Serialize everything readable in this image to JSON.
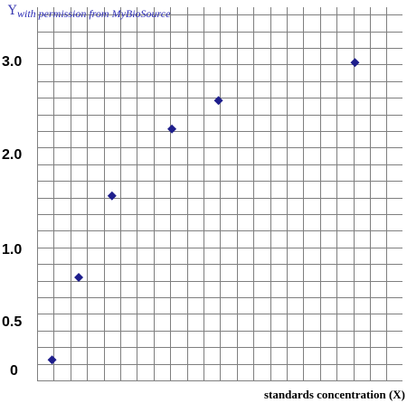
{
  "chart_data": {
    "type": "scatter",
    "title": "",
    "xlabel": "standards concentration (X)",
    "ylabel": "Y",
    "watermark": "with permission from MyBioSource",
    "y_ticks": [
      "0",
      "0.5",
      "1.0",
      "2.0",
      "3.0"
    ],
    "x": [
      0.35,
      1.15,
      2.15,
      3.95,
      5.35,
      9.45
    ],
    "y": [
      0.1,
      0.8,
      1.55,
      2.25,
      2.55,
      2.95
    ],
    "xlim": [
      0,
      11
    ],
    "ylim": [
      0,
      3.5
    ],
    "grid": true,
    "marker": "diamond",
    "marker_color": "#1e1e8c"
  }
}
